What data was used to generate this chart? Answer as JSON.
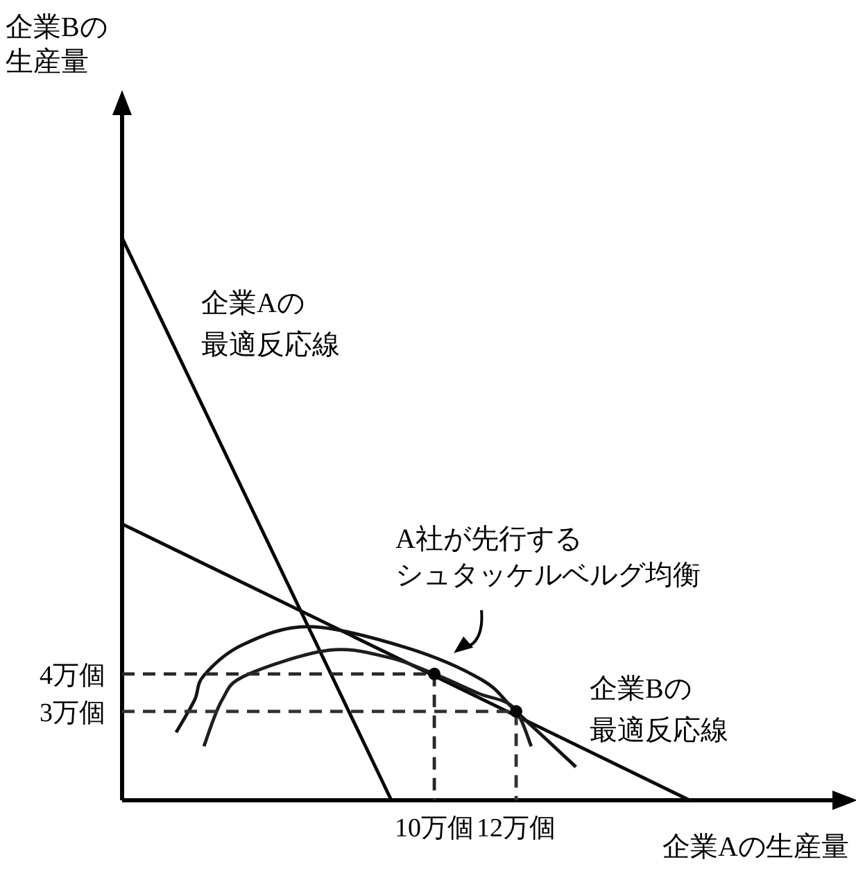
{
  "chart_data": {
    "type": "line",
    "xlabel": "企業Aの生産量",
    "ylabel": "企業Bの生産量",
    "xlim": [
      2.37,
      20
    ],
    "ylim": [
      0.63,
      19.2
    ],
    "xticks": [
      {
        "value": 10,
        "label": "10万個"
      },
      {
        "value": 12,
        "label": "12万個"
      }
    ],
    "yticks": [
      {
        "value": 3,
        "label": "3万個"
      },
      {
        "value": 4,
        "label": "4万個"
      }
    ],
    "marker": "none",
    "line_style": "solid",
    "series": [
      {
        "color": "#000000",
        "x": [
          2.37,
          8.95
        ],
        "values": [
          15.63,
          0.63
        ]
      },
      {
        "color": "#0a0a0a",
        "x": [
          2.37,
          16.24
        ],
        "values": [
          8.0,
          0.63
        ]
      },
      {
        "color": "#141414",
        "x": [
          3.69,
          4.14,
          4.37,
          5.32,
          6.95,
          9.32,
          11.15,
          12,
          13.46
        ],
        "values": [
          2.44,
          3.3,
          3.96,
          4.78,
          5.26,
          4.7,
          3.85,
          3,
          1.52
        ]
      },
      {
        "color": "#1e1e1e",
        "x": [
          4.37,
          4.81,
          5.39,
          7.42,
          8.88,
          10,
          11.08,
          11.93,
          12.37
        ],
        "values": [
          2.07,
          3.3,
          3.96,
          4.63,
          4.44,
          4,
          3.48,
          3.11,
          2.07
        ]
      },
      {
        "color": "#282828",
        "line_style": "dashed",
        "x": [
          2.37,
          10,
          10
        ],
        "values": [
          4,
          4,
          0.63
        ]
      },
      {
        "color": "#323232",
        "line_style": "dashed",
        "x": [
          2.37,
          12,
          12
        ],
        "values": [
          3,
          3,
          0.63
        ]
      },
      {
        "type": "scatter",
        "color": "#050505",
        "marker": "circle",
        "x": [
          10,
          12
        ],
        "values": [
          4,
          3
        ]
      }
    ],
    "annotations": [
      "企業Aの最適反応線",
      "企業Bの最適反応線",
      {
        "text": "A社が先行するシュタッケルベルグ均衡",
        "x": 10,
        "y": 4
      }
    ]
  }
}
